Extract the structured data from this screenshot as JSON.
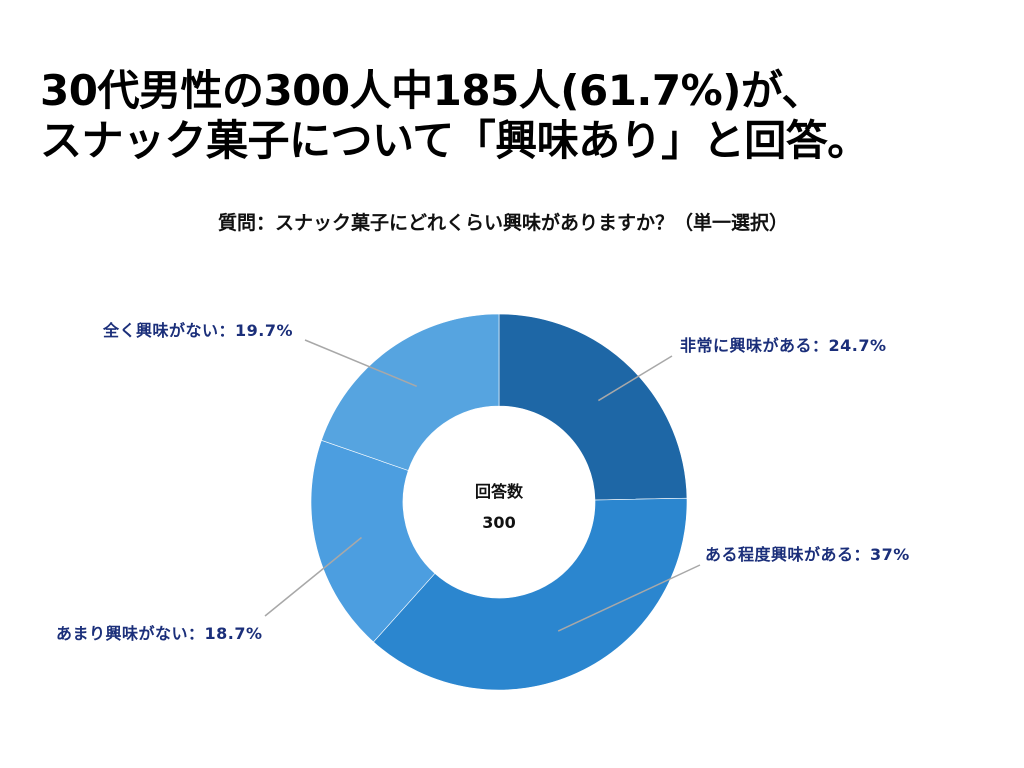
{
  "headline": {
    "line1": "30代男性の300人中185人(61.7%)が、",
    "line2": "スナック菓子について「興味あり」と回答。"
  },
  "question": "質問：スナック菓子にどれくらい興味がありますか？（単一選択）",
  "chart_data": {
    "type": "pie",
    "style": "donut",
    "center_label": "回答数",
    "center_value": "300",
    "slices": [
      {
        "label": "非常に興味がある：24.7%",
        "value": 24.7,
        "color": "#1e67a6"
      },
      {
        "label": "ある程度興味がある：37%",
        "value": 37.0,
        "color": "#2b86cf"
      },
      {
        "label": "あまり興味がない：18.7%",
        "value": 18.7,
        "color": "#4c9ee0"
      },
      {
        "label": "全く興味がない：19.7%",
        "value": 19.7,
        "color": "#56a4e0"
      }
    ]
  }
}
